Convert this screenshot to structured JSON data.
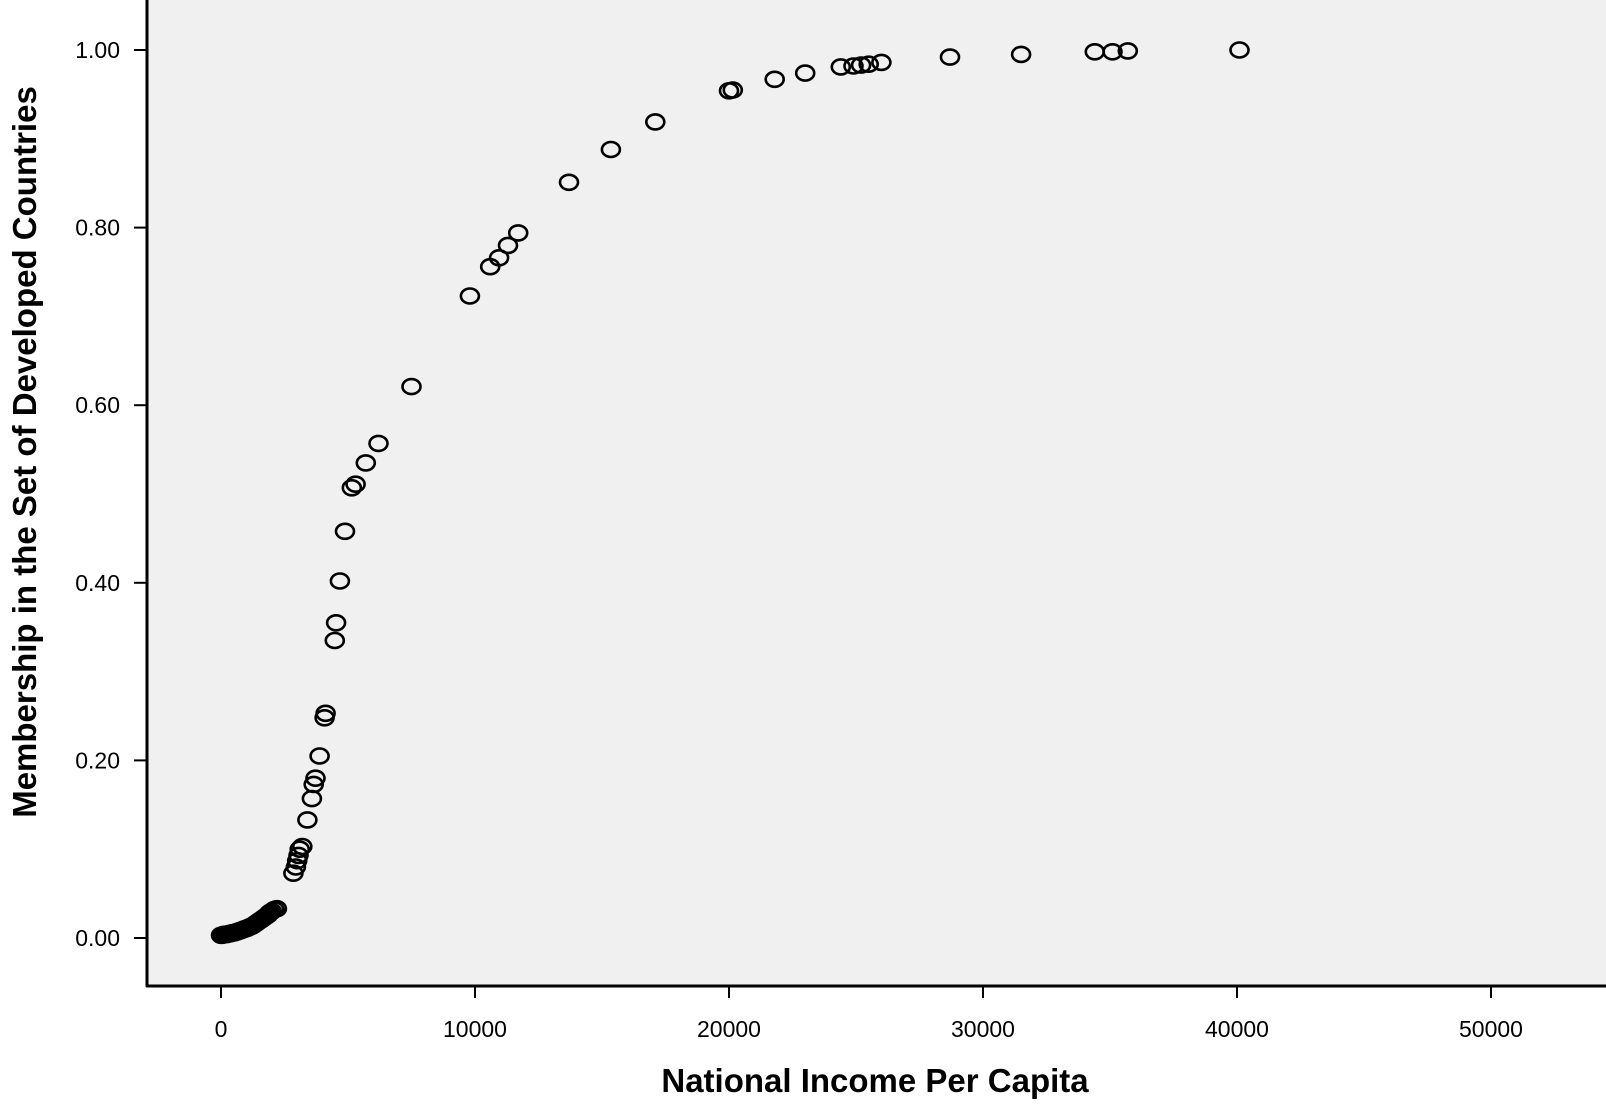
{
  "chart_data": {
    "type": "scatter",
    "title": "",
    "xlabel": "National Income Per Capita",
    "ylabel": "Membership in the Set of Developed Countries",
    "xlim": [
      -2800,
      53000
    ],
    "ylim": [
      -0.055,
      1.06
    ],
    "x_ticks": [
      0,
      10000,
      20000,
      30000,
      40000,
      50000
    ],
    "x_tick_labels": [
      "0",
      "10000",
      "20000",
      "30000",
      "40000",
      "50000"
    ],
    "y_ticks": [
      0,
      0.2,
      0.4,
      0.6,
      0.8,
      1.0
    ],
    "y_tick_labels": [
      "0.00",
      "0.20",
      "0.40",
      "0.60",
      "0.80",
      "1.00"
    ],
    "grid": false,
    "legend": "none",
    "colors": {
      "plot_background": "#f0f0f0",
      "marker": "#000000",
      "axis": "#000000"
    },
    "marker": "open-circle",
    "points": [
      {
        "x": 0,
        "y": 0.003
      },
      {
        "x": 50,
        "y": 0.003
      },
      {
        "x": 100,
        "y": 0.004
      },
      {
        "x": 150,
        "y": 0.004
      },
      {
        "x": 200,
        "y": 0.004
      },
      {
        "x": 250,
        "y": 0.004
      },
      {
        "x": 300,
        "y": 0.005
      },
      {
        "x": 350,
        "y": 0.005
      },
      {
        "x": 400,
        "y": 0.005
      },
      {
        "x": 450,
        "y": 0.006
      },
      {
        "x": 500,
        "y": 0.006
      },
      {
        "x": 550,
        "y": 0.006
      },
      {
        "x": 600,
        "y": 0.007
      },
      {
        "x": 650,
        "y": 0.007
      },
      {
        "x": 700,
        "y": 0.008
      },
      {
        "x": 750,
        "y": 0.008
      },
      {
        "x": 800,
        "y": 0.009
      },
      {
        "x": 850,
        "y": 0.009
      },
      {
        "x": 900,
        "y": 0.01
      },
      {
        "x": 950,
        "y": 0.01
      },
      {
        "x": 1000,
        "y": 0.011
      },
      {
        "x": 1050,
        "y": 0.011
      },
      {
        "x": 1100,
        "y": 0.012
      },
      {
        "x": 1150,
        "y": 0.013
      },
      {
        "x": 1200,
        "y": 0.013
      },
      {
        "x": 1250,
        "y": 0.014
      },
      {
        "x": 1300,
        "y": 0.015
      },
      {
        "x": 1350,
        "y": 0.016
      },
      {
        "x": 1400,
        "y": 0.017
      },
      {
        "x": 1450,
        "y": 0.018
      },
      {
        "x": 1500,
        "y": 0.019
      },
      {
        "x": 1550,
        "y": 0.02
      },
      {
        "x": 1600,
        "y": 0.021
      },
      {
        "x": 1650,
        "y": 0.022
      },
      {
        "x": 1700,
        "y": 0.023
      },
      {
        "x": 1750,
        "y": 0.024
      },
      {
        "x": 1800,
        "y": 0.025
      },
      {
        "x": 1850,
        "y": 0.026
      },
      {
        "x": 1900,
        "y": 0.028
      },
      {
        "x": 1950,
        "y": 0.029
      },
      {
        "x": 2000,
        "y": 0.03
      },
      {
        "x": 2100,
        "y": 0.032
      },
      {
        "x": 2200,
        "y": 0.033
      },
      {
        "x": 2850,
        "y": 0.073
      },
      {
        "x": 2950,
        "y": 0.08
      },
      {
        "x": 3000,
        "y": 0.087
      },
      {
        "x": 3050,
        "y": 0.093
      },
      {
        "x": 3100,
        "y": 0.1
      },
      {
        "x": 3200,
        "y": 0.103
      },
      {
        "x": 3400,
        "y": 0.133
      },
      {
        "x": 3580,
        "y": 0.157
      },
      {
        "x": 3650,
        "y": 0.173
      },
      {
        "x": 3720,
        "y": 0.18
      },
      {
        "x": 3880,
        "y": 0.205
      },
      {
        "x": 4080,
        "y": 0.248
      },
      {
        "x": 4120,
        "y": 0.253
      },
      {
        "x": 4480,
        "y": 0.335
      },
      {
        "x": 4530,
        "y": 0.355
      },
      {
        "x": 4680,
        "y": 0.402
      },
      {
        "x": 4880,
        "y": 0.458
      },
      {
        "x": 5150,
        "y": 0.507
      },
      {
        "x": 5300,
        "y": 0.511
      },
      {
        "x": 5700,
        "y": 0.535
      },
      {
        "x": 6200,
        "y": 0.557
      },
      {
        "x": 7500,
        "y": 0.621
      },
      {
        "x": 9800,
        "y": 0.723
      },
      {
        "x": 10600,
        "y": 0.756
      },
      {
        "x": 10950,
        "y": 0.766
      },
      {
        "x": 11300,
        "y": 0.78
      },
      {
        "x": 11700,
        "y": 0.794
      },
      {
        "x": 13700,
        "y": 0.851
      },
      {
        "x": 15350,
        "y": 0.888
      },
      {
        "x": 17100,
        "y": 0.919
      },
      {
        "x": 20000,
        "y": 0.954
      },
      {
        "x": 20150,
        "y": 0.955
      },
      {
        "x": 21800,
        "y": 0.967
      },
      {
        "x": 23000,
        "y": 0.974
      },
      {
        "x": 24400,
        "y": 0.981
      },
      {
        "x": 24900,
        "y": 0.982
      },
      {
        "x": 25200,
        "y": 0.983
      },
      {
        "x": 25500,
        "y": 0.984
      },
      {
        "x": 26000,
        "y": 0.986
      },
      {
        "x": 28700,
        "y": 0.992
      },
      {
        "x": 31500,
        "y": 0.995
      },
      {
        "x": 34400,
        "y": 0.998
      },
      {
        "x": 35100,
        "y": 0.998
      },
      {
        "x": 35700,
        "y": 0.999
      },
      {
        "x": 40100,
        "y": 1.0
      }
    ]
  }
}
